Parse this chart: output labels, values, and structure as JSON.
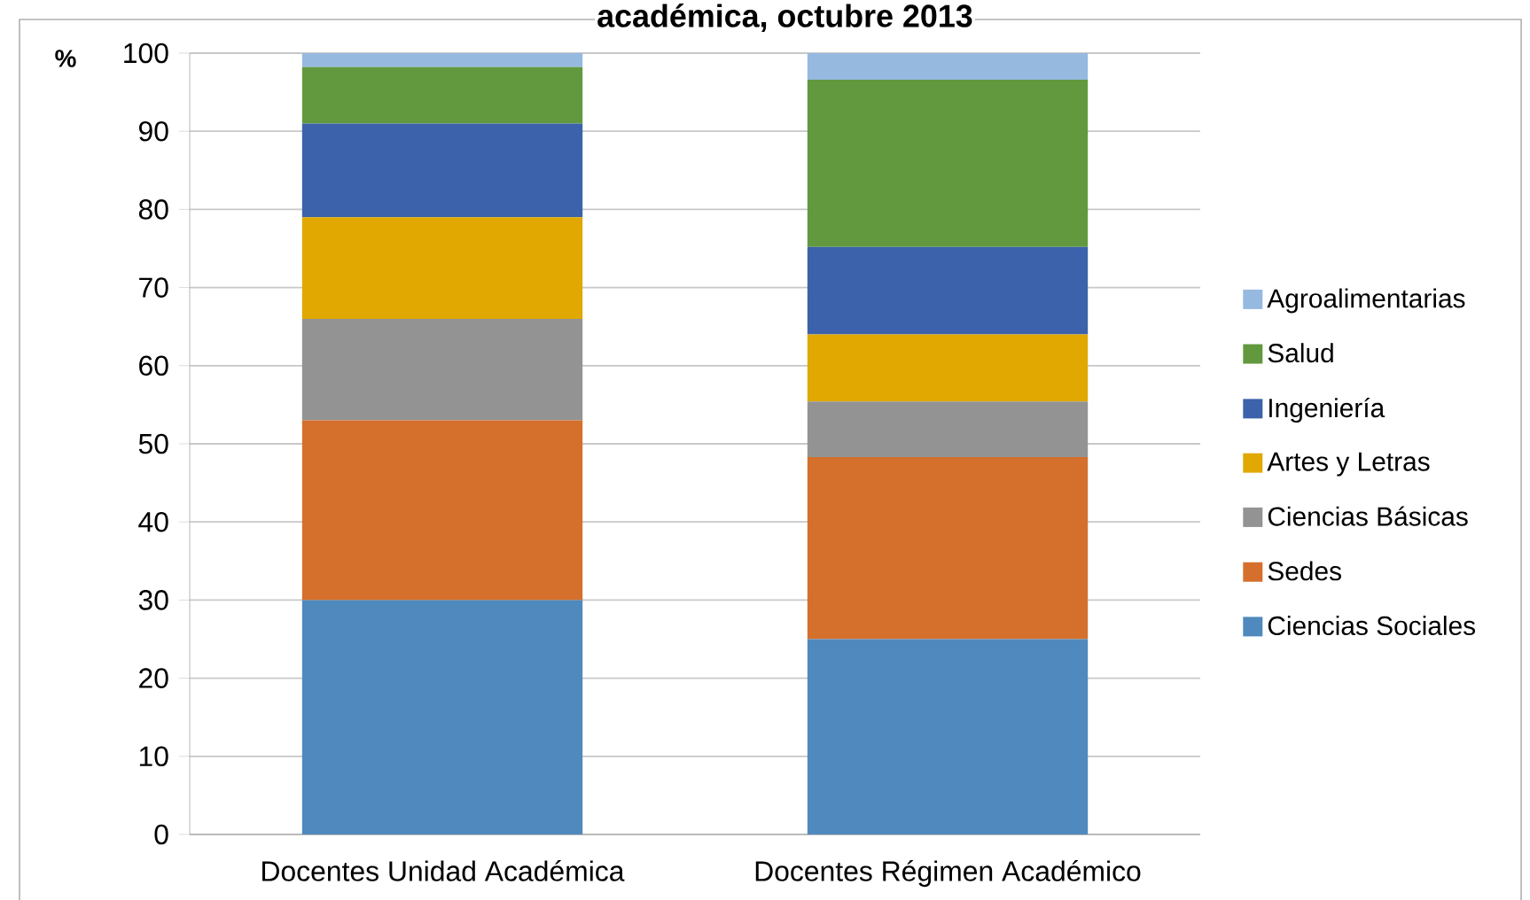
{
  "chart_data": {
    "type": "bar",
    "stacked": true,
    "title": "académica, octubre 2013",
    "ylabel": "%",
    "categories": [
      "Docentes Unidad Académica",
      "Docentes Régimen Académico"
    ],
    "series": [
      {
        "name": "Ciencias Sociales",
        "color": "#4f89bd",
        "values": [
          30,
          25
        ]
      },
      {
        "name": "Sedes",
        "color": "#d4702c",
        "values": [
          23,
          23.3
        ]
      },
      {
        "name": "Ciencias Básicas",
        "color": "#939393",
        "values": [
          13,
          7.1
        ]
      },
      {
        "name": "Artes y Letras",
        "color": "#e0a800",
        "values": [
          13,
          8.6
        ]
      },
      {
        "name": "Ingeniería",
        "color": "#3b62aa",
        "values": [
          12,
          11.2
        ]
      },
      {
        "name": "Salud",
        "color": "#62993f",
        "values": [
          7.2,
          21.4
        ]
      },
      {
        "name": "Agroalimentarias",
        "color": "#96b9e0",
        "values": [
          1.8,
          3.4
        ]
      }
    ],
    "ylim": [
      0,
      100
    ],
    "yticks": [
      0,
      10,
      20,
      30,
      40,
      50,
      60,
      70,
      80,
      90,
      100
    ],
    "grid": "y",
    "legend": "right"
  }
}
